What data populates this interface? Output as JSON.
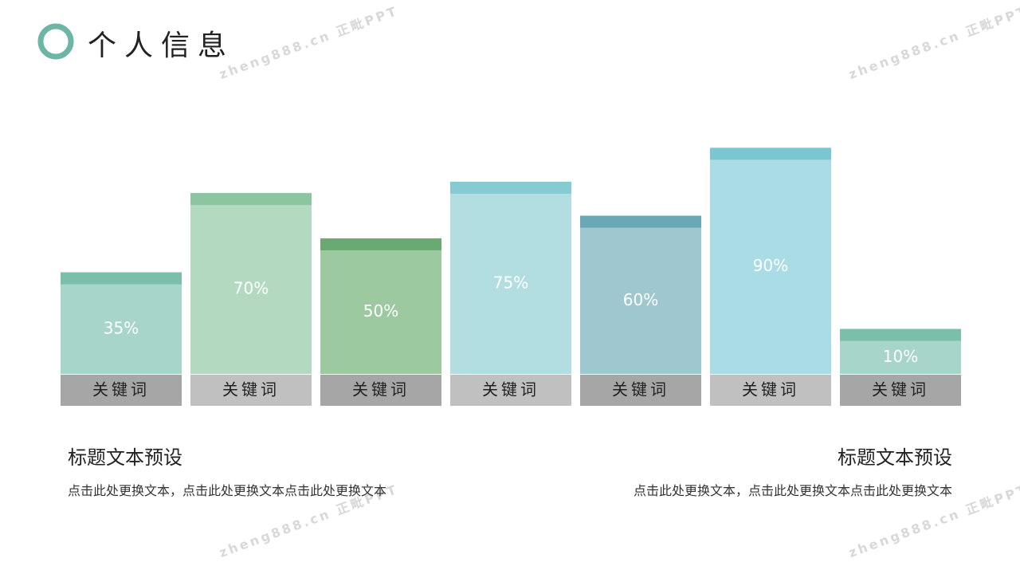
{
  "chart_data": {
    "type": "bar",
    "title": "个人信息",
    "categories": [
      "关键词",
      "关键词",
      "关键词",
      "关键词",
      "关键词",
      "关键词",
      "关键词"
    ],
    "values": [
      35,
      70,
      50,
      75,
      60,
      90,
      10
    ],
    "value_labels": [
      "35%",
      "70%",
      "50%",
      "75%",
      "60%",
      "90%",
      "10%"
    ],
    "colors": [
      "#a8d5c9",
      "#b3dac0",
      "#9dc9a0",
      "#b2dde1",
      "#9fc7d0",
      "#a9dce4",
      "#a8d5c9"
    ],
    "cap_colors": [
      "#7bbfaa",
      "#8cc6a0",
      "#6aaa72",
      "#86cbd3",
      "#68a9b5",
      "#7ac6d2",
      "#7bbfaa"
    ]
  },
  "blocks": [
    {
      "heading": "标题文本预设",
      "body": "点击此处更换文本，点击此处更换文本点击此处更换文本"
    },
    {
      "heading": "标题文本预设",
      "body": "点击此处更换文本，点击此处更换文本点击此处更换文本"
    }
  ],
  "watermark": "zheng888.cn 正毗PPT"
}
